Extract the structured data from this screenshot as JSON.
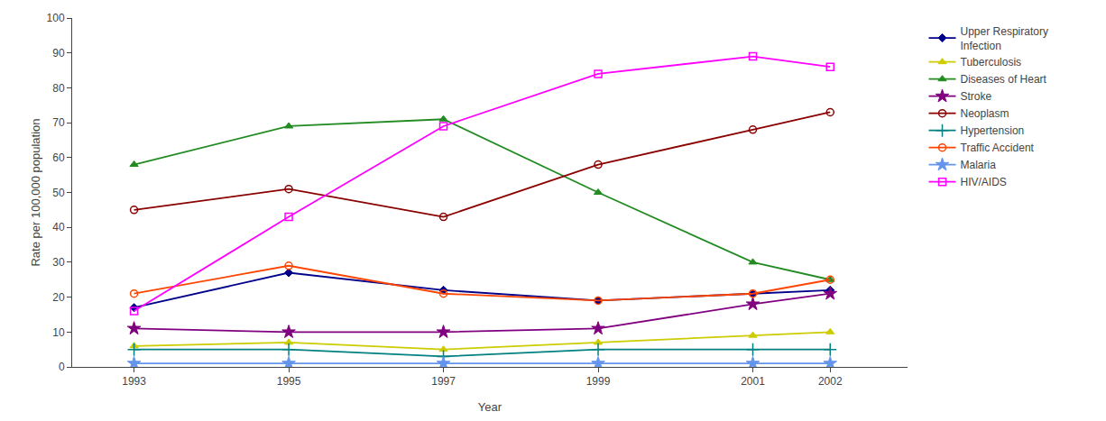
{
  "chart_data": {
    "type": "line",
    "x": [
      1993,
      1995,
      1997,
      1999,
      2001,
      2002
    ],
    "series": [
      {
        "name": "Upper Respiratory\nInfection",
        "color": "#00008B",
        "marker": "diamond",
        "values": [
          17,
          27,
          22,
          19,
          21,
          22
        ]
      },
      {
        "name": "Tuberculosis",
        "color": "#CCCC00",
        "marker": "triangle",
        "values": [
          6,
          7,
          5,
          7,
          9,
          10
        ]
      },
      {
        "name": "Diseases of Heart",
        "color": "#228B22",
        "marker": "triangle",
        "values": [
          58,
          69,
          71,
          50,
          30,
          25
        ]
      },
      {
        "name": "Stroke",
        "color": "#800080",
        "marker": "star",
        "values": [
          11,
          10,
          10,
          11,
          18,
          21
        ]
      },
      {
        "name": "Neoplasm",
        "color": "#8B0000",
        "marker": "circle-open",
        "values": [
          45,
          51,
          43,
          58,
          68,
          73
        ]
      },
      {
        "name": "Hypertension",
        "color": "#008080",
        "marker": "plus",
        "values": [
          5,
          5,
          3,
          5,
          5,
          5
        ]
      },
      {
        "name": "Traffic Accident",
        "color": "#FF4500",
        "marker": "circle-open",
        "values": [
          21,
          29,
          21,
          19,
          21,
          25
        ]
      },
      {
        "name": "Malaria",
        "color": "#6495ED",
        "marker": "star",
        "values": [
          1,
          1,
          1,
          1,
          1,
          1
        ]
      },
      {
        "name": "HIV/AIDS",
        "color": "#FF00FF",
        "marker": "square-open",
        "values": [
          16,
          43,
          69,
          84,
          89,
          86
        ]
      }
    ],
    "xlabel": "Year",
    "ylabel": "Rate per 100,000 population",
    "xlim": [
      1992.2,
      2003.0
    ],
    "xticks": [
      1993,
      1995,
      1997,
      1999,
      2001,
      2002
    ],
    "ylim": [
      0,
      100
    ],
    "yticks": [
      0,
      10,
      20,
      30,
      40,
      50,
      60,
      70,
      80,
      90,
      100
    ],
    "grid": false,
    "legend": "right"
  }
}
